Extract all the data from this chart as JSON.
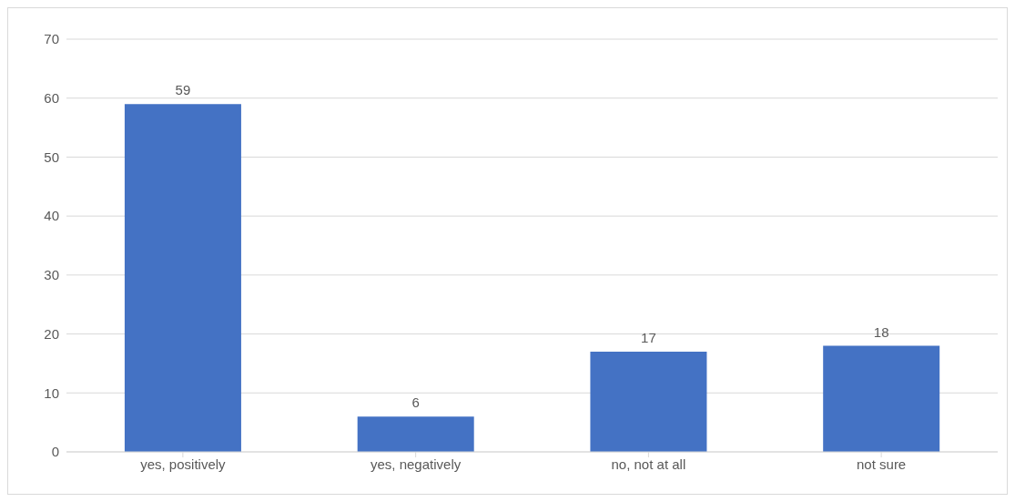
{
  "chart_data": {
    "type": "bar",
    "categories": [
      "yes, positively",
      "yes, negatively",
      "no, not at all",
      "not sure"
    ],
    "values": [
      59,
      6,
      17,
      18
    ],
    "color": "#4472c4",
    "ylim": [
      0,
      70
    ],
    "yticks": [
      0,
      10,
      20,
      30,
      40,
      50,
      60,
      70
    ],
    "grid": "y",
    "data_labels": true
  }
}
